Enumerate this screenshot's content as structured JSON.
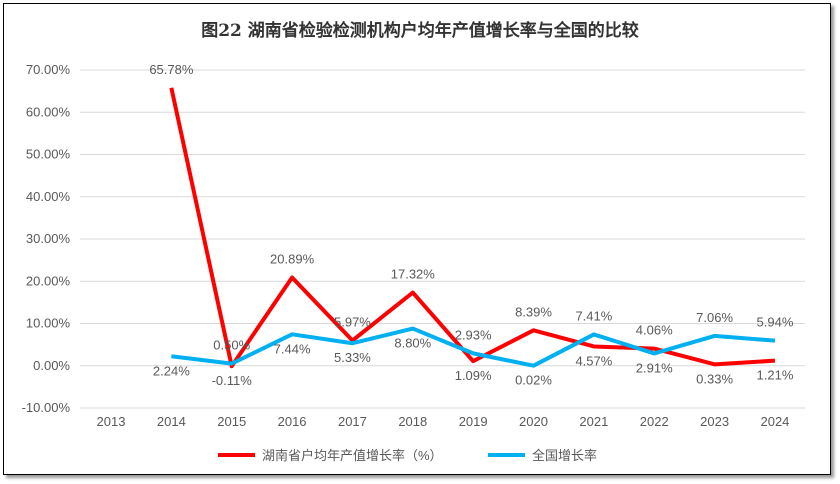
{
  "chart_data": {
    "type": "line",
    "title": "图22  湖南省检验检测机构户均年产值增长率与全国的比较",
    "categories": [
      "2013",
      "2014",
      "2015",
      "2016",
      "2017",
      "2018",
      "2019",
      "2020",
      "2021",
      "2022",
      "2023",
      "2024"
    ],
    "yticks": [
      "-10.00%",
      "0.00%",
      "10.00%",
      "20.00%",
      "30.00%",
      "40.00%",
      "50.00%",
      "60.00%",
      "70.00%"
    ],
    "ylim": [
      -10,
      70
    ],
    "grid": true,
    "legend_position": "bottom",
    "series": [
      {
        "name": "湖南省户均年产值增长率（%）",
        "color": "#ff0000",
        "values": [
          null,
          65.78,
          -0.11,
          20.89,
          5.97,
          17.32,
          1.09,
          8.39,
          4.57,
          4.06,
          0.33,
          1.21
        ],
        "labels": [
          "",
          "65.78%",
          "-0.11%",
          "20.89%",
          "5.97%",
          "17.32%",
          "1.09%",
          "8.39%",
          "4.57%",
          "4.06%",
          "0.33%",
          "1.21%"
        ]
      },
      {
        "name": "全国增长率",
        "color": "#00b0f0",
        "values": [
          null,
          2.24,
          0.5,
          7.44,
          5.33,
          8.8,
          2.93,
          0.02,
          7.41,
          2.91,
          7.06,
          5.94
        ],
        "labels": [
          "",
          "2.24%",
          "0.50%",
          "7.44%",
          "5.33%",
          "8.80%",
          "2.93%",
          "0.02%",
          "7.41%",
          "2.91%",
          "7.06%",
          "5.94%"
        ]
      }
    ]
  }
}
